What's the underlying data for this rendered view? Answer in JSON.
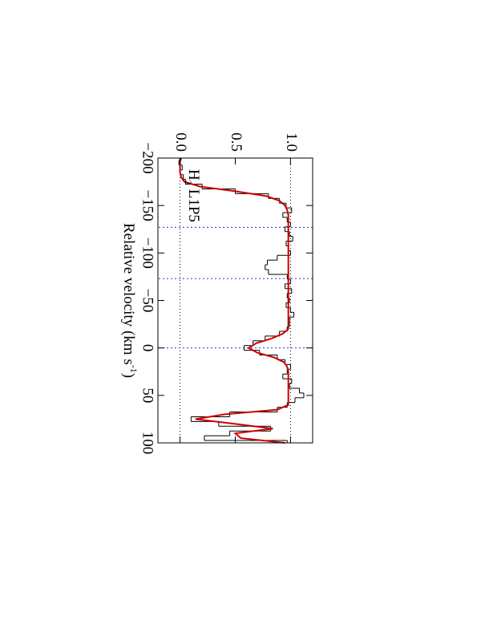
{
  "chart_data": {
    "type": "step",
    "xlabel": [
      "Relative velocity (km s",
      "-1",
      ")"
    ],
    "annotation": [
      "H",
      "2",
      "L1P5"
    ],
    "x": [
      -200,
      -195,
      -190,
      -185,
      -180,
      -175,
      -170,
      -165,
      -160,
      -155,
      -150,
      -145,
      -140,
      -135,
      -130,
      -125,
      -120,
      -115,
      -110,
      -105,
      -100,
      -95,
      -90,
      -85,
      -80,
      -75,
      -70,
      -65,
      -60,
      -55,
      -50,
      -45,
      -40,
      -35,
      -30,
      -25,
      -20,
      -15,
      -10,
      -5,
      0,
      5,
      10,
      15,
      20,
      25,
      30,
      35,
      40,
      45,
      50,
      55,
      60,
      65,
      70,
      75,
      80,
      85,
      90,
      95,
      100
    ],
    "flux": {
      "color": "#000000",
      "values": [
        0.01,
        -0.01,
        0.02,
        0.0,
        0.03,
        0.05,
        0.2,
        0.5,
        0.8,
        0.9,
        0.96,
        1.01,
        0.93,
        0.97,
        1.0,
        0.95,
        0.99,
        1.02,
        0.96,
        0.98,
        1.0,
        0.88,
        0.79,
        0.77,
        0.8,
        0.97,
        1.0,
        0.95,
        1.01,
        0.97,
        0.99,
        0.96,
        1.0,
        1.03,
        0.99,
        0.99,
        0.97,
        0.9,
        0.77,
        0.66,
        0.58,
        0.72,
        0.88,
        0.95,
        1.0,
        0.97,
        0.93,
        1.01,
        0.99,
        1.08,
        1.12,
        1.04,
        0.97,
        0.88,
        0.45,
        0.1,
        0.35,
        0.82,
        0.45,
        0.22,
        0.97
      ]
    },
    "model": {
      "color": "#cc0000",
      "values": [
        0.0,
        0.0,
        0.0,
        0.0,
        0.01,
        0.04,
        0.18,
        0.5,
        0.78,
        0.9,
        0.95,
        0.97,
        0.98,
        0.98,
        0.98,
        0.98,
        0.98,
        0.98,
        0.98,
        0.98,
        0.98,
        0.98,
        0.98,
        0.98,
        0.98,
        0.98,
        0.98,
        0.98,
        0.98,
        0.98,
        0.98,
        0.98,
        0.98,
        0.98,
        0.98,
        0.98,
        0.98,
        0.93,
        0.83,
        0.69,
        0.62,
        0.7,
        0.85,
        0.94,
        0.97,
        0.98,
        0.98,
        0.98,
        0.98,
        0.98,
        0.98,
        0.98,
        0.98,
        0.88,
        0.4,
        0.14,
        0.5,
        0.84,
        0.5,
        0.55,
        0.95
      ]
    },
    "xlim": [
      -200,
      100
    ],
    "xticks": [
      {
        "value": -200,
        "label": "−200"
      },
      {
        "value": -150,
        "label": "−150"
      },
      {
        "value": -100,
        "label": "−100"
      },
      {
        "value": -50,
        "label": "−50"
      },
      0,
      50,
      100
    ],
    "ylim": [
      -0.2,
      1.2
    ],
    "yticks": [
      {
        "value": 0,
        "label": "0.0"
      },
      0.5,
      {
        "value": 1,
        "label": "1.0"
      }
    ],
    "flux_reference_lines": [
      0,
      1
    ],
    "velocity_markers": {
      "color": "#3333cc",
      "values": [
        -127,
        -73,
        0
      ]
    },
    "rotation": 90
  }
}
